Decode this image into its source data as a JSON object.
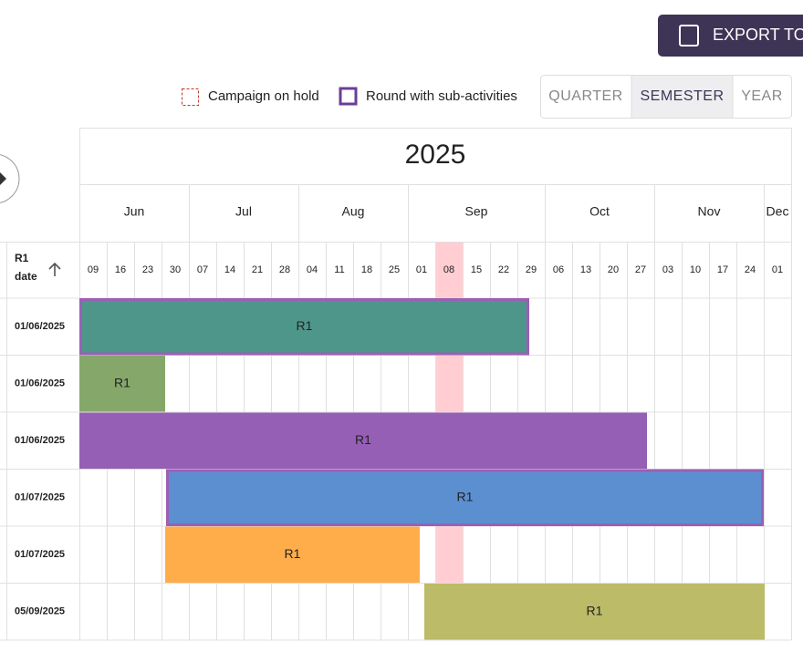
{
  "toolbar": {
    "export_button": "EXPORT TO"
  },
  "legend": {
    "items": [
      "Campaign on hold",
      "Round with sub-activities"
    ]
  },
  "view_toggle": {
    "options": [
      "QUARTER",
      "SEMESTER",
      "YEAR"
    ]
  },
  "timeline": {
    "year": "2025",
    "months": [
      "Jun",
      "Jul",
      "Aug",
      "Sep",
      "Oct",
      "Nov",
      "Dec"
    ],
    "weeks": [
      "09",
      "16",
      "23",
      "30",
      "07",
      "14",
      "21",
      "28",
      "04",
      "11",
      "18",
      "25",
      "01",
      "08",
      "15",
      "22",
      "29",
      "06",
      "13",
      "20",
      "27",
      "03",
      "10",
      "17",
      "24",
      "01"
    ]
  },
  "table": {
    "header": {
      "title": "R1",
      "subtitle": "date"
    },
    "rows": [
      {
        "date": "01/06/2025",
        "bar_label": "R1"
      },
      {
        "date": "01/06/2025",
        "bar_label": "R1"
      },
      {
        "date": "01/06/2025",
        "bar_label": "R1"
      },
      {
        "date": "01/07/2025",
        "bar_label": "R1"
      },
      {
        "date": "01/07/2025",
        "bar_label": "R1"
      },
      {
        "date": "05/09/2025",
        "bar_label": "R1"
      }
    ]
  }
}
